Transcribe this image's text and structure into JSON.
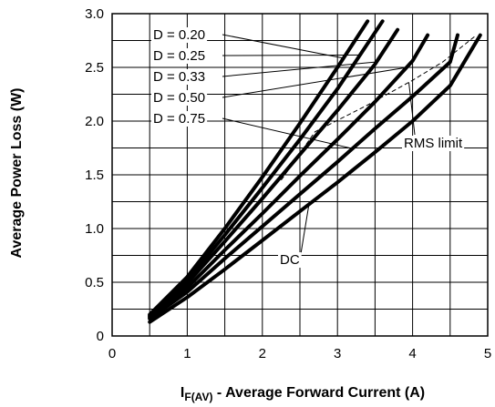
{
  "chart_data": {
    "type": "line",
    "title": "",
    "ylabel": "Average Power Loss (W)",
    "xlabel": {
      "main": "I",
      "sub": "F(AV)",
      "rest": " - Average Forward Current (A)"
    },
    "xlim": [
      0,
      5
    ],
    "ylim": [
      0,
      3.0
    ],
    "x_ticks": [
      "0",
      "1",
      "2",
      "3",
      "4",
      "5"
    ],
    "y_ticks": [
      "0",
      "0.5",
      "1.0",
      "1.5",
      "2.0",
      "2.5",
      "3.0"
    ],
    "grid": true,
    "series": [
      {
        "name": "D = 0.20",
        "x": [
          0.5,
          1.0,
          1.5,
          2.0,
          2.5,
          3.0,
          3.4
        ],
        "y": [
          0.2,
          0.55,
          1.0,
          1.48,
          1.98,
          2.5,
          2.93
        ]
      },
      {
        "name": "D = 0.25",
        "x": [
          0.5,
          1.0,
          1.5,
          2.0,
          2.5,
          3.0,
          3.6
        ],
        "y": [
          0.19,
          0.52,
          0.94,
          1.38,
          1.83,
          2.3,
          2.93
        ]
      },
      {
        "name": "D = 0.33",
        "x": [
          0.5,
          1.0,
          1.5,
          2.0,
          2.5,
          3.0,
          3.5,
          3.8
        ],
        "y": [
          0.18,
          0.49,
          0.88,
          1.28,
          1.69,
          2.1,
          2.53,
          2.85
        ]
      },
      {
        "name": "D = 0.50",
        "x": [
          0.5,
          1.0,
          1.5,
          2.0,
          2.5,
          3.0,
          3.5,
          4.0,
          4.2
        ],
        "y": [
          0.17,
          0.45,
          0.8,
          1.14,
          1.49,
          1.83,
          2.18,
          2.56,
          2.8
        ]
      },
      {
        "name": "D = 0.75",
        "x": [
          0.5,
          1.0,
          1.5,
          2.0,
          2.5,
          3.0,
          3.5,
          4.0,
          4.5,
          4.6
        ],
        "y": [
          0.16,
          0.41,
          0.72,
          1.02,
          1.32,
          1.62,
          1.93,
          2.23,
          2.55,
          2.8
        ]
      },
      {
        "name": "DC",
        "x": [
          0.5,
          1.0,
          1.5,
          2.0,
          2.5,
          3.0,
          3.5,
          4.0,
          4.5,
          4.9
        ],
        "y": [
          0.13,
          0.36,
          0.62,
          0.89,
          1.16,
          1.43,
          1.71,
          2.0,
          2.33,
          2.8
        ]
      }
    ],
    "rms_limit": {
      "name": "RMS limit",
      "x": [
        2.25,
        2.7,
        3.4,
        4.0,
        4.4,
        4.85
      ],
      "y": [
        1.45,
        1.9,
        2.15,
        2.38,
        2.55,
        2.8
      ]
    },
    "annotations": [
      {
        "text": "D = 0.20",
        "series": 0,
        "at_x": 3.08
      },
      {
        "text": "D = 0.25",
        "series": 1,
        "at_x": 3.3
      },
      {
        "text": "D = 0.33",
        "series": 2,
        "at_x": 3.52
      },
      {
        "text": "D = 0.50",
        "series": 3,
        "at_x": 3.92
      },
      {
        "text": "D = 0.75",
        "series": 4,
        "at_x": 3.2
      },
      {
        "text": "DC",
        "series": 5,
        "at_x": 2.62
      },
      {
        "text": "RMS limit",
        "series": "rms",
        "at_x": 3.95
      }
    ]
  }
}
